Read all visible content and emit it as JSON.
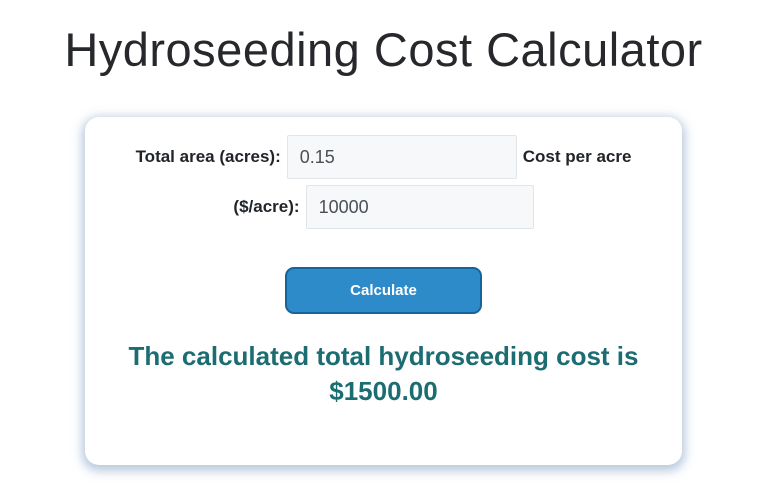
{
  "page": {
    "title": "Hydroseeding Cost Calculator"
  },
  "calculator": {
    "area_label": "Total area (acres):",
    "area_value": "0.15",
    "cost_label_line1": "Cost per acre",
    "cost_label_line2": "($/acre):",
    "cost_value": "10000",
    "calculate_button": "Calculate",
    "result_line1": "The calculated total hydroseeding cost is",
    "result_line2": "$1500.00"
  },
  "colors": {
    "button_bg": "#2d8bc9",
    "button_border": "#17639c",
    "result_text": "#1b6d72",
    "input_bg": "#f7f8f9",
    "input_border": "#e2e5e8",
    "card_shadow": "rgba(125,155,195,0.55)"
  }
}
